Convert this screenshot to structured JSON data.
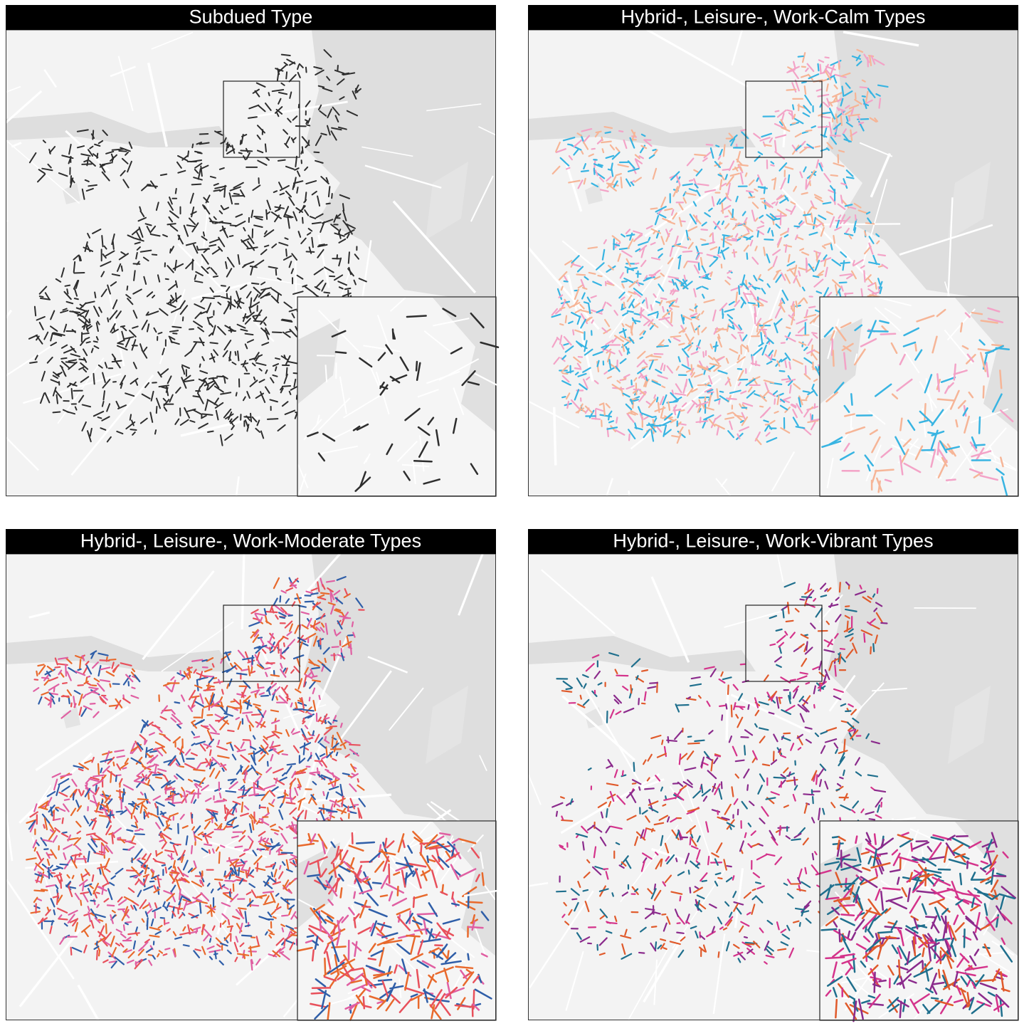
{
  "panels": [
    {
      "title": "Subdued Type",
      "colors": [
        "#2e2e2e"
      ]
    },
    {
      "title": "Hybrid-, Leisure-, Work-Calm Types",
      "colors": [
        "#38b4e2",
        "#f6b597",
        "#f3a3c7"
      ]
    },
    {
      "title": "Hybrid-, Leisure-, Work-Moderate Types",
      "colors": [
        "#e8505b",
        "#2f5ea8",
        "#e8692c",
        "#e05fa2"
      ]
    },
    {
      "title": "Hybrid-, Leisure-, Work-Vibrant Types",
      "colors": [
        "#d4338b",
        "#1f6f8d",
        "#e05a2b",
        "#8b2b8c"
      ]
    }
  ]
}
